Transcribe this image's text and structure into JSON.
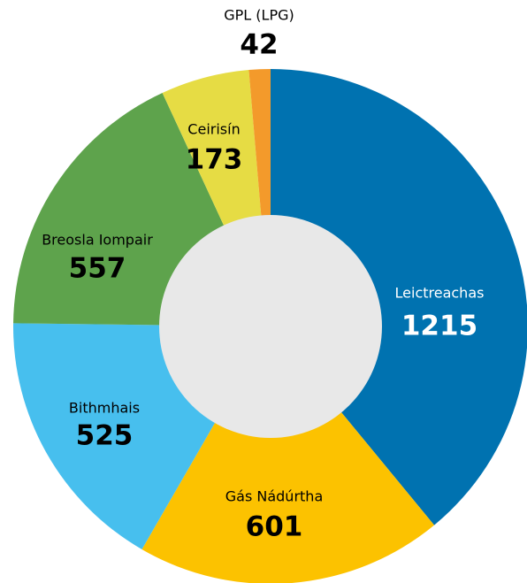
{
  "chart_data": {
    "type": "donut",
    "categories": [
      "Leictreachas",
      "Gás Nádúrtha",
      "Bithmhais",
      "Breosla Iompair",
      "Ceirisín",
      "GPL (LPG)"
    ],
    "values": [
      1215,
      601,
      525,
      557,
      173,
      42
    ],
    "colors": [
      "#0072b0",
      "#fcc200",
      "#47bfee",
      "#5ea34c",
      "#e6dc44",
      "#f39a2b"
    ],
    "label_colors": [
      "#ffffff",
      "#000000",
      "#000000",
      "#000000",
      "#000000",
      "#000000"
    ],
    "center_color": "#e8e8e8"
  }
}
